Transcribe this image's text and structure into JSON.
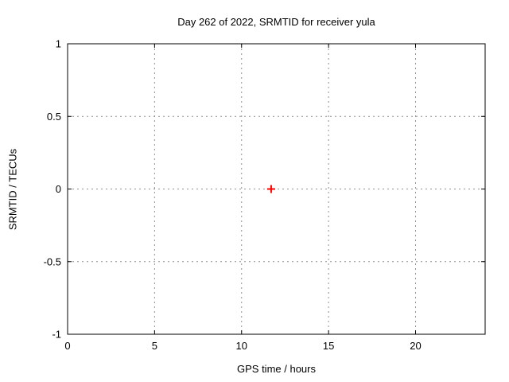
{
  "chart_data": {
    "type": "scatter",
    "title": "Day 262 of 2022, SRMTID for receiver yula",
    "xlabel": "GPS time / hours",
    "ylabel": "SRMTID / TECUs",
    "xlim": [
      0,
      24
    ],
    "ylim": [
      -1,
      1
    ],
    "xticks": [
      0,
      5,
      10,
      15,
      20
    ],
    "xtick_labels": [
      "0",
      "5",
      "10",
      "15",
      "20"
    ],
    "yticks": [
      1,
      0.5,
      0,
      -0.5,
      -1
    ],
    "ytick_labels": [
      "1",
      "0.5",
      "0",
      "-0.5",
      "-1"
    ],
    "grid": true,
    "grid_color": "#909090",
    "border_color": "#000000",
    "legend": "none",
    "series": [
      {
        "name": "SRMTID",
        "marker": "plus",
        "color": "#ff0000",
        "points": [
          {
            "x": 11.7,
            "y": 0.0
          }
        ]
      }
    ]
  }
}
